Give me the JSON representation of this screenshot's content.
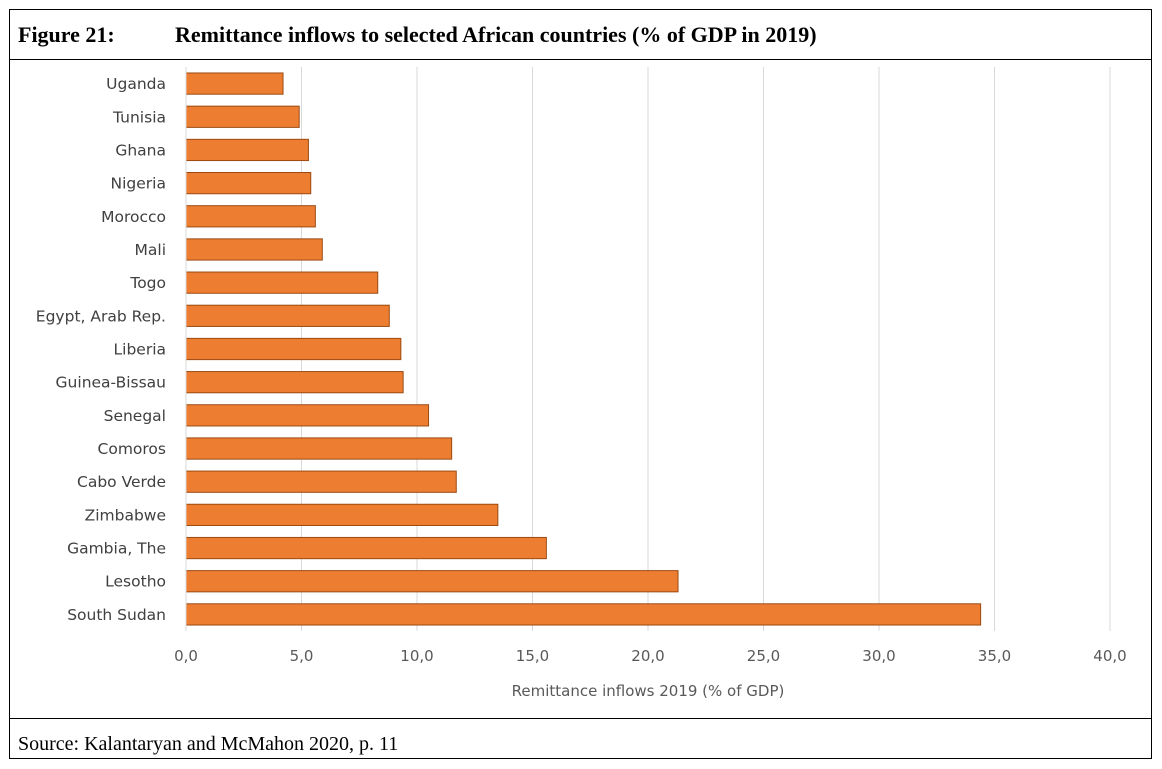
{
  "figure": {
    "number": "Figure 21:",
    "title": "Remittance inflows to selected African countries (% of GDP in 2019)",
    "source": "Source: Kalantaryan and McMahon 2020, p. 11"
  },
  "chart_data": {
    "type": "bar",
    "orientation": "horizontal",
    "categories": [
      "Uganda",
      "Tunisia",
      "Ghana",
      "Nigeria",
      "Morocco",
      "Mali",
      "Togo",
      "Egypt, Arab Rep.",
      "Liberia",
      "Guinea-Bissau",
      "Senegal",
      "Comoros",
      "Cabo Verde",
      "Zimbabwe",
      "Gambia, The",
      "Lesotho",
      "South Sudan"
    ],
    "values": [
      4.2,
      4.9,
      5.3,
      5.4,
      5.6,
      5.9,
      8.3,
      8.8,
      9.3,
      9.4,
      10.5,
      11.5,
      11.7,
      13.5,
      15.6,
      21.3,
      34.4
    ],
    "xlabel": "Remittance inflows 2019 (% of GDP)",
    "ylabel": "",
    "xlim": [
      0,
      40
    ],
    "xticks": [
      "0,0",
      "5,0",
      "10,0",
      "15,0",
      "20,0",
      "25,0",
      "30,0",
      "35,0",
      "40,0"
    ],
    "grid": "vertical",
    "legend": "none",
    "bar_color": "#ed7d31",
    "bar_edge_color": "#9c4a12",
    "grid_color": "#d9d9d9"
  }
}
